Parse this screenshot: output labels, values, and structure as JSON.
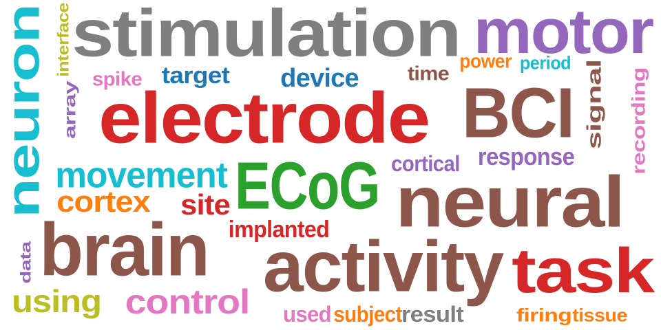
{
  "colors": {
    "background": "#ffffff",
    "gray": "#7f7f7f",
    "purple": "#9467bd",
    "brown": "#8c564b",
    "red": "#d62728",
    "green": "#2ca02c",
    "cyan": "#17becf",
    "olive": "#bcbd22",
    "orange": "#ff7f0e",
    "blue": "#1f77b4",
    "pink": "#e377c2"
  },
  "words": [
    {
      "text": "stimulation",
      "color": "#7f7f7f",
      "weight": 1.0,
      "orientation": "horizontal"
    },
    {
      "text": "motor",
      "color": "#9467bd",
      "weight": 0.78,
      "orientation": "horizontal"
    },
    {
      "text": "neuron",
      "color": "#17becf",
      "weight": 0.8,
      "orientation": "vertical"
    },
    {
      "text": "interface",
      "color": "#bcbd22",
      "weight": 0.22,
      "orientation": "vertical"
    },
    {
      "text": "array",
      "color": "#9467bd",
      "weight": 0.3,
      "orientation": "vertical"
    },
    {
      "text": "spike",
      "color": "#e377c2",
      "weight": 0.24,
      "orientation": "horizontal"
    },
    {
      "text": "target",
      "color": "#1f77b4",
      "weight": 0.28,
      "orientation": "horizontal"
    },
    {
      "text": "device",
      "color": "#1f77b4",
      "weight": 0.32,
      "orientation": "horizontal"
    },
    {
      "text": "time",
      "color": "#8c564b",
      "weight": 0.24,
      "orientation": "horizontal"
    },
    {
      "text": "power",
      "color": "#ff7f0e",
      "weight": 0.22,
      "orientation": "horizontal"
    },
    {
      "text": "period",
      "color": "#17becf",
      "weight": 0.22,
      "orientation": "horizontal"
    },
    {
      "text": "electrode",
      "color": "#d62728",
      "weight": 1.0,
      "orientation": "horizontal"
    },
    {
      "text": "BCI",
      "color": "#8c564b",
      "weight": 1.0,
      "orientation": "horizontal"
    },
    {
      "text": "signal",
      "color": "#8c564b",
      "weight": 0.34,
      "orientation": "vertical"
    },
    {
      "text": "recording",
      "color": "#e377c2",
      "weight": 0.3,
      "orientation": "vertical"
    },
    {
      "text": "response",
      "color": "#9467bd",
      "weight": 0.3,
      "orientation": "horizontal"
    },
    {
      "text": "cortical",
      "color": "#9467bd",
      "weight": 0.26,
      "orientation": "horizontal"
    },
    {
      "text": "movement",
      "color": "#17becf",
      "weight": 0.48,
      "orientation": "horizontal"
    },
    {
      "text": "ECoG",
      "color": "#2ca02c",
      "weight": 0.82,
      "orientation": "horizontal"
    },
    {
      "text": "neural",
      "color": "#8c564b",
      "weight": 1.0,
      "orientation": "horizontal"
    },
    {
      "text": "cortex",
      "color": "#ff7f0e",
      "weight": 0.4,
      "orientation": "horizontal"
    },
    {
      "text": "site",
      "color": "#d62728",
      "weight": 0.36,
      "orientation": "horizontal"
    },
    {
      "text": "implanted",
      "color": "#d62728",
      "weight": 0.3,
      "orientation": "horizontal"
    },
    {
      "text": "brain",
      "color": "#8c564b",
      "weight": 1.0,
      "orientation": "horizontal"
    },
    {
      "text": "data",
      "color": "#9467bd",
      "weight": 0.24,
      "orientation": "vertical"
    },
    {
      "text": "activity",
      "color": "#8c564b",
      "weight": 1.0,
      "orientation": "horizontal"
    },
    {
      "text": "task",
      "color": "#d62728",
      "weight": 0.9,
      "orientation": "horizontal"
    },
    {
      "text": "using",
      "color": "#bcbd22",
      "weight": 0.4,
      "orientation": "horizontal"
    },
    {
      "text": "control",
      "color": "#e377c2",
      "weight": 0.46,
      "orientation": "horizontal"
    },
    {
      "text": "used",
      "color": "#e377c2",
      "weight": 0.28,
      "orientation": "horizontal"
    },
    {
      "text": "subject",
      "color": "#ff7f0e",
      "weight": 0.26,
      "orientation": "horizontal"
    },
    {
      "text": "result",
      "color": "#7f7f7f",
      "weight": 0.28,
      "orientation": "horizontal"
    },
    {
      "text": "firing",
      "color": "#ff7f0e",
      "weight": 0.24,
      "orientation": "horizontal"
    },
    {
      "text": "tissue",
      "color": "#ff7f0e",
      "weight": 0.24,
      "orientation": "horizontal"
    }
  ]
}
